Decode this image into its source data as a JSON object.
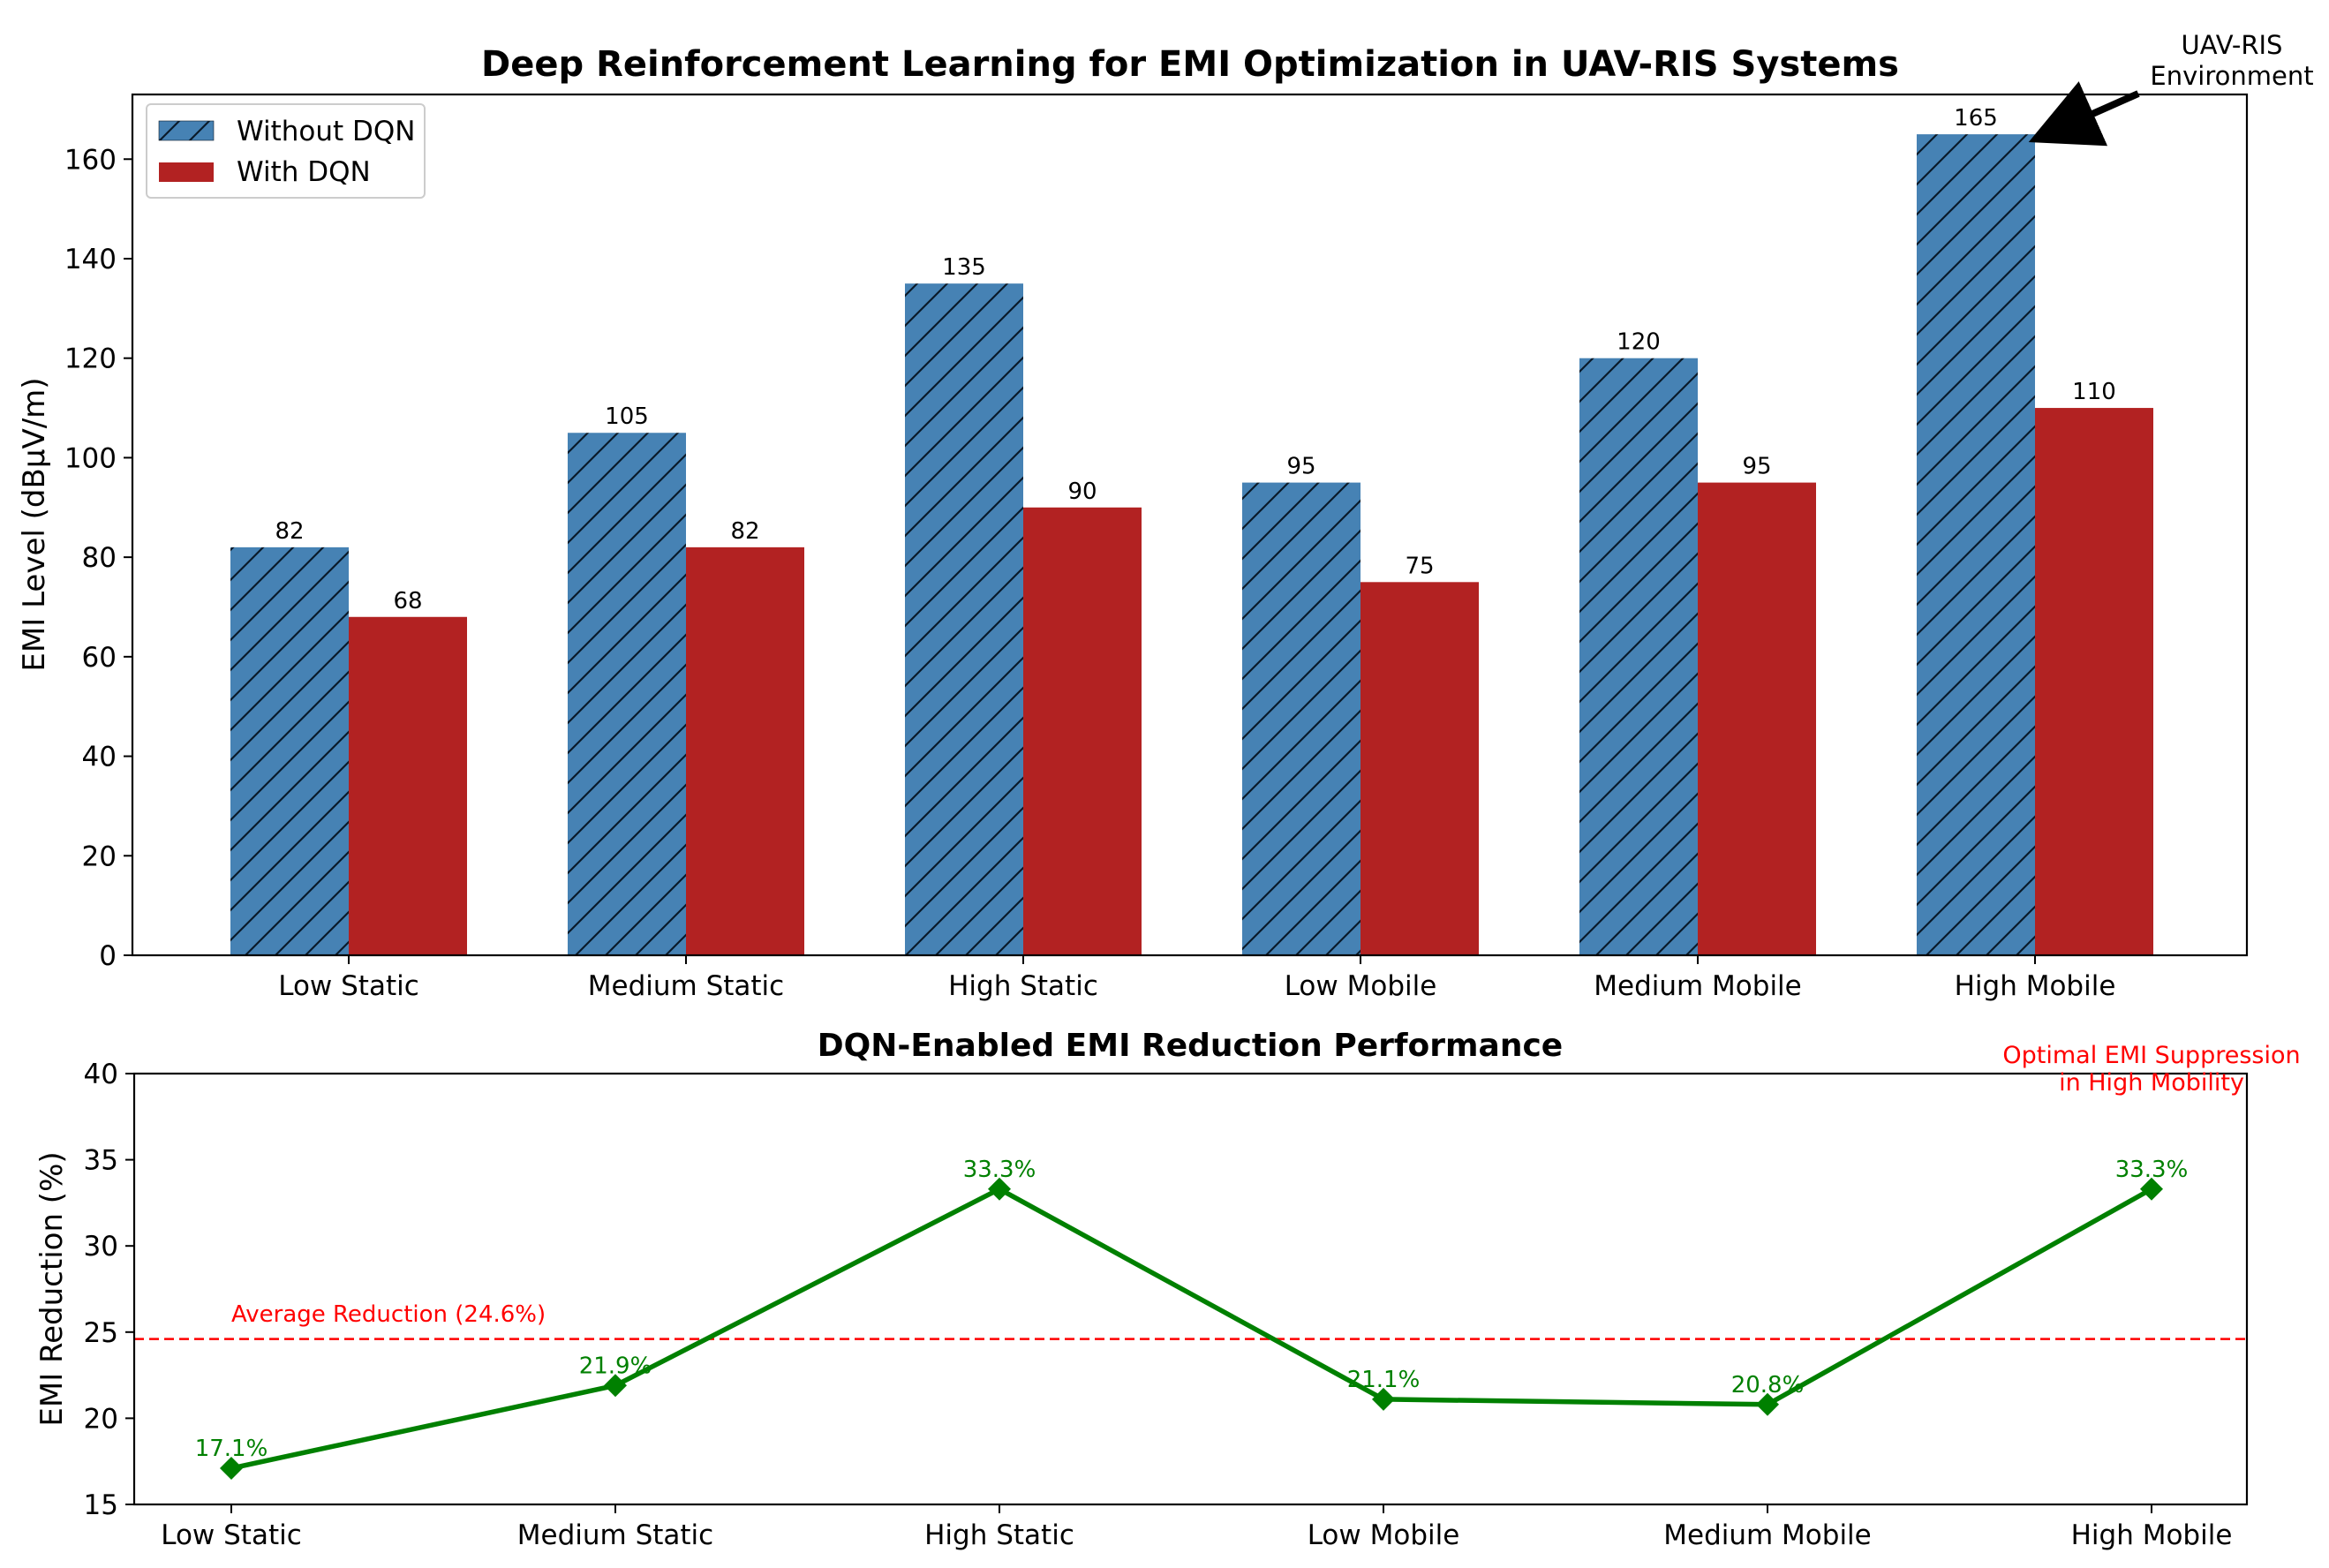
{
  "chart_data": [
    {
      "type": "bar",
      "title": "Deep Reinforcement Learning for EMI Optimization in UAV-RIS Systems",
      "xlabel": "",
      "ylabel": "EMI Level (dBμV/m)",
      "ylim": [
        0,
        173
      ],
      "yticks": [
        0,
        20,
        40,
        60,
        80,
        100,
        120,
        140,
        160
      ],
      "categories": [
        "Low Static",
        "Medium Static",
        "High Static",
        "Low Mobile",
        "Medium Mobile",
        "High Mobile"
      ],
      "series": [
        {
          "name": "Without DQN",
          "values": [
            82,
            105,
            135,
            95,
            120,
            165
          ],
          "color": "#4682b4",
          "hatch": "//"
        },
        {
          "name": "With DQN",
          "values": [
            68,
            82,
            90,
            75,
            95,
            110
          ],
          "color": "#b22222"
        }
      ],
      "legend": {
        "position": "top-left",
        "entries": [
          "Without DQN",
          "With DQN"
        ]
      },
      "annotation": {
        "text_line1": "UAV-RIS",
        "text_line2": "Environment",
        "target_category": "High Mobile",
        "target_value": 165,
        "arrow": "black"
      }
    },
    {
      "type": "line",
      "title": "DQN-Enabled EMI Reduction Performance",
      "xlabel": "",
      "ylabel": "EMI Reduction (%)",
      "ylim": [
        15,
        40
      ],
      "yticks": [
        15,
        20,
        25,
        30,
        35,
        40
      ],
      "categories": [
        "Low Static",
        "Medium Static",
        "High Static",
        "Low Mobile",
        "Medium Mobile",
        "High Mobile"
      ],
      "series": [
        {
          "name": "EMI Reduction",
          "values": [
            17.1,
            21.9,
            33.3,
            21.1,
            20.8,
            33.3
          ],
          "labels": [
            "17.1%",
            "21.9%",
            "33.3%",
            "21.1%",
            "20.8%",
            "33.3%"
          ],
          "color": "#008000",
          "marker": "diamond"
        }
      ],
      "reference_line": {
        "value": 24.6,
        "label": "Average Reduction (24.6%)",
        "color": "#ff0000",
        "style": "dashed"
      },
      "annotation": {
        "text_line1": "Optimal EMI Suppression",
        "text_line2": "in High Mobility",
        "color": "#ff0000"
      }
    }
  ]
}
